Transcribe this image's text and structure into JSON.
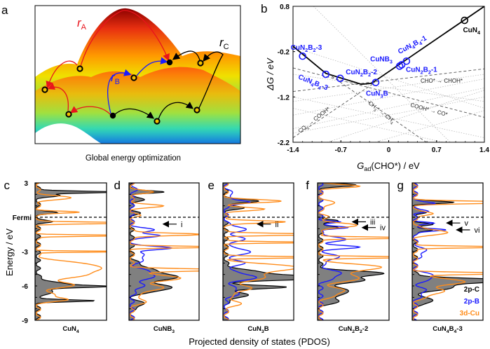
{
  "panel_labels": {
    "a": "a",
    "b": "b",
    "c": "c",
    "d": "d",
    "e": "e",
    "f": "f",
    "g": "g"
  },
  "panel_a": {
    "caption": "Global energy optimization",
    "path_labels": [
      {
        "main": "r",
        "sub": "A",
        "color": "#e8141c"
      },
      {
        "main": "r",
        "sub": "B",
        "color": "#1a1aff"
      },
      {
        "main": "r",
        "sub": "C",
        "color": "#000000"
      }
    ]
  },
  "chart_data": [
    {
      "type": "line",
      "title": "",
      "xlabel": {
        "main": "G",
        "sub": "ad",
        "rest": "(CHO*) / eV"
      },
      "ylabel": "ΔG / eV",
      "xlim": [
        -1.4,
        1.4
      ],
      "ylim": [
        -2.2,
        0.8
      ],
      "xticks": [
        "-1.4",
        "-0.7",
        "0",
        "0.7",
        "1.4"
      ],
      "xtick_values": [
        -1.4,
        -0.7,
        0,
        0.7,
        1.4
      ],
      "yticks": [
        "0.8",
        "-0.2",
        "-1.2",
        "-2.2"
      ],
      "ytick_values": [
        0.8,
        -0.2,
        -1.2,
        -2.2
      ],
      "limiting_line": [
        [
          -1.4,
          -0.08
        ],
        [
          -0.92,
          -0.68
        ],
        [
          -0.4,
          -0.92
        ],
        [
          -0.25,
          -0.9
        ],
        [
          1.4,
          0.8
        ]
      ],
      "points": [
        {
          "label": "CuN₄",
          "x": 1.11,
          "y": 0.49,
          "color": "#000000"
        },
        {
          "label": "CuN₂B₂-3",
          "x": -1.26,
          "y": -0.3,
          "color": "#1a1aff"
        },
        {
          "label": "CuN₄B₄-3",
          "x": -0.92,
          "y": -0.7,
          "color": "#1a1aff"
        },
        {
          "label": "CuN₂B₂-2",
          "x": -0.71,
          "y": -0.79,
          "color": "#1a1aff"
        },
        {
          "label": "CuN₃B",
          "x": -0.19,
          "y": -0.88,
          "color": "#1a1aff"
        },
        {
          "label": "CuNB₃",
          "x": 0.16,
          "y": -0.52,
          "color": "#1a1aff"
        },
        {
          "label": "CuN₂B₂-1",
          "x": 0.19,
          "y": -0.49,
          "color": "#1a1aff"
        },
        {
          "label": "CuN₄B₄-1",
          "x": 0.26,
          "y": -0.41,
          "color": "#1a1aff"
        }
      ],
      "reaction_lines": [
        {
          "label": "CHO* → CHOH*",
          "from": [
            -1.4,
            -1.08
          ],
          "to": [
            1.4,
            -0.58
          ]
        },
        {
          "label": "COOH* → CO*",
          "from": [
            -1.4,
            -0.56
          ],
          "to": [
            1.4,
            -1.65
          ]
        },
        {
          "label": "CO₂ → COOH*",
          "from": [
            -1.4,
            -2.1
          ],
          "to": [
            -0.2,
            -0.88
          ]
        },
        {
          "label": "CH₃* → CH₄",
          "from": [
            -0.95,
            -0.62
          ],
          "to": [
            0.55,
            -2.2
          ]
        }
      ],
      "background_lines": [
        [
          [
            -1.4,
            -1.3
          ],
          [
            1.4,
            -0.7
          ]
        ],
        [
          [
            -1.4,
            -1.6
          ],
          [
            1.4,
            -0.8
          ]
        ],
        [
          [
            -1.4,
            -1.9
          ],
          [
            1.4,
            -1.0
          ]
        ],
        [
          [
            -1.4,
            -2.0
          ],
          [
            1.4,
            -1.2
          ]
        ],
        [
          [
            -1.4,
            -1.2
          ],
          [
            1.4,
            -2.1
          ]
        ],
        [
          [
            -1.4,
            -1.45
          ],
          [
            0.8,
            -2.2
          ]
        ],
        [
          [
            -1.1,
            0.8
          ],
          [
            0.9,
            -2.2
          ]
        ],
        [
          [
            -1.4,
            -0.1
          ],
          [
            1.4,
            -1.45
          ]
        ],
        [
          [
            -0.9,
            -2.2
          ],
          [
            1.4,
            -1.05
          ]
        ],
        [
          [
            -0.2,
            -2.2
          ],
          [
            1.4,
            -1.5
          ]
        ],
        [
          [
            -1.4,
            -0.7
          ],
          [
            1.4,
            -1.3
          ]
        ]
      ]
    },
    {
      "type": "line",
      "title": "Projected density of states (PDOS)",
      "ylabel": "Energy / eV",
      "ylim": [
        -9,
        3
      ],
      "yticks": [
        "3",
        "Fermi",
        "-3",
        "-6",
        "-9"
      ],
      "ytick_values": [
        3,
        0,
        -3,
        -6,
        -9
      ],
      "legend": [
        {
          "label": "2p-C",
          "color": "#000000"
        },
        {
          "label": "2p-B",
          "color": "#1a1aff"
        },
        {
          "label": "3d-Cu",
          "color": "#ff8c1a"
        }
      ],
      "panels": [
        {
          "name": "CuN₄",
          "annotations": [],
          "series": {
            "2p-C": [
              [
                2.2,
                1.2,
                0.12
              ],
              [
                1.9,
                0.3,
                0.15
              ],
              [
                0.4,
                0.25,
                0.15
              ],
              [
                -0.4,
                0.2,
                0.15
              ],
              [
                -5.9,
                0.4,
                0.4
              ],
              [
                -6.05,
                0.7,
                0.12
              ],
              [
                -7.3,
                0.8,
                0.12
              ],
              [
                -6.6,
                0.15,
                0.4
              ]
            ],
            "2p-B": [],
            "3d-Cu": [
              [
                1.7,
                0.45,
                0.25
              ],
              [
                0.45,
                0.6,
                0.12
              ],
              [
                -0.5,
                1.5,
                0.1
              ],
              [
                -1.6,
                1.5,
                0.08
              ],
              [
                -3.0,
                1.5,
                0.06
              ],
              [
                -4.3,
                0.9,
                0.5
              ],
              [
                -5.0,
                0.65,
                0.4
              ],
              [
                -5.9,
                0.5,
                0.4
              ],
              [
                -6.9,
                0.25,
                0.4
              ],
              [
                -7.2,
                0.3,
                0.2
              ]
            ]
          }
        },
        {
          "name": "CuNB₃",
          "annotations": [
            {
              "label": "i",
              "energy": -0.6
            }
          ],
          "series": {
            "2p-C": [
              [
                2.2,
                0.5,
                0.15
              ],
              [
                1.5,
                0.2,
                0.2
              ],
              [
                0.4,
                0.1,
                0.2
              ],
              [
                -5.2,
                0.65,
                0.5
              ],
              [
                -6.2,
                0.6,
                0.4
              ],
              [
                -4.4,
                0.2,
                0.5
              ],
              [
                -7.6,
                0.2,
                0.3
              ]
            ],
            "2p-B": [
              [
                2.5,
                0.05,
                0.5
              ],
              [
                -1.1,
                0.3,
                0.25
              ],
              [
                -1.6,
                0.42,
                0.2
              ],
              [
                -2.7,
                0.6,
                0.2
              ],
              [
                -3.5,
                0.2,
                0.5
              ],
              [
                -5.0,
                0.35,
                0.5
              ],
              [
                -6.0,
                0.15,
                0.5
              ]
            ],
            "3d-Cu": [
              [
                2.2,
                0.3,
                0.2
              ],
              [
                1.0,
                0.45,
                0.2
              ],
              [
                0.15,
                0.1,
                0.2
              ],
              [
                -1.5,
                1.1,
                0.15
              ],
              [
                -2.6,
                1.4,
                0.1
              ],
              [
                -4.6,
                1.4,
                0.15
              ],
              [
                -5.3,
                0.7,
                0.4
              ],
              [
                -6.2,
                0.45,
                0.4
              ],
              [
                -7.3,
                0.2,
                0.4
              ]
            ]
          }
        },
        {
          "name": "CuN₃B",
          "annotations": [
            {
              "label": "ii",
              "energy": -0.6
            }
          ],
          "series": {
            "2p-C": [
              [
                1.4,
                0.5,
                0.2
              ],
              [
                0.8,
                0.25,
                0.2
              ],
              [
                -5.3,
                1.2,
                0.25
              ],
              [
                -5.0,
                0.6,
                0.5
              ],
              [
                -6.1,
                0.85,
                0.2
              ],
              [
                -6.8,
                0.3,
                0.4
              ]
            ],
            "2p-B": [
              [
                2.0,
                0.12,
                0.3
              ],
              [
                1.3,
                0.4,
                0.2
              ],
              [
                -1.0,
                0.3,
                0.3
              ],
              [
                -1.9,
                0.25,
                0.4
              ],
              [
                -3.0,
                0.4,
                0.3
              ],
              [
                -4.0,
                0.25,
                0.4
              ],
              [
                -5.2,
                0.45,
                0.4
              ],
              [
                -6.5,
                0.2,
                0.5
              ]
            ],
            "3d-Cu": [
              [
                1.4,
                0.8,
                0.2
              ],
              [
                0.7,
                0.55,
                0.2
              ],
              [
                -0.4,
                0.9,
                0.15
              ],
              [
                -1.5,
                1.5,
                0.12
              ],
              [
                -2.2,
                1.5,
                0.08
              ],
              [
                -3.5,
                1.5,
                0.1
              ],
              [
                -4.4,
                1.1,
                0.4
              ],
              [
                -5.2,
                0.6,
                0.4
              ],
              [
                -6.2,
                0.35,
                0.5
              ],
              [
                -7.5,
                0.2,
                0.4
              ]
            ]
          }
        },
        {
          "name": "CuN₂B₂-2",
          "annotations": [
            {
              "label": "iii",
              "energy": -0.4
            },
            {
              "label": "iv",
              "energy": -0.9
            }
          ],
          "series": {
            "2p-C": [
              [
                2.8,
                0.5,
                0.2
              ],
              [
                -0.3,
                0.3,
                0.15
              ],
              [
                -0.9,
                0.3,
                0.15
              ],
              [
                -4.9,
                0.85,
                0.3
              ],
              [
                -5.5,
                0.6,
                0.4
              ],
              [
                -6.5,
                0.45,
                0.4
              ],
              [
                -7.3,
                0.3,
                0.3
              ]
            ],
            "2p-B": [
              [
                -0.4,
                0.3,
                0.12
              ],
              [
                -0.9,
                0.45,
                0.15
              ],
              [
                -1.9,
                0.35,
                0.3
              ],
              [
                -2.6,
                0.55,
                0.2
              ],
              [
                -3.5,
                0.25,
                0.4
              ],
              [
                -5.0,
                0.3,
                0.5
              ]
            ],
            "3d-Cu": [
              [
                2.7,
                0.55,
                0.2
              ],
              [
                1.2,
                0.2,
                0.3
              ],
              [
                0.1,
                0.1,
                0.2
              ],
              [
                -0.7,
                0.5,
                0.3
              ],
              [
                -1.8,
                1.5,
                0.1
              ],
              [
                -3.5,
                1.5,
                0.1
              ],
              [
                -4.4,
                0.9,
                0.4
              ],
              [
                -5.3,
                0.6,
                0.4
              ],
              [
                -6.5,
                0.35,
                0.5
              ]
            ]
          }
        },
        {
          "name": "CuN₄B₄-3",
          "annotations": [
            {
              "label": "v",
              "energy": -0.5
            },
            {
              "label": "vi",
              "energy": -1.1
            }
          ],
          "series": {
            "2p-C": [
              [
                1.3,
                0.55,
                0.15
              ],
              [
                0.4,
                0.2,
                0.15
              ],
              [
                -0.6,
                0.25,
                0.15
              ],
              [
                -1.1,
                0.3,
                0.15
              ],
              [
                -5.5,
                1.2,
                0.25
              ],
              [
                -6.0,
                0.6,
                0.5
              ],
              [
                -7.3,
                0.3,
                0.3
              ]
            ],
            "2p-B": [
              [
                1.2,
                0.3,
                0.15
              ],
              [
                0.5,
                0.2,
                0.15
              ],
              [
                -0.5,
                0.3,
                0.12
              ],
              [
                -1.1,
                0.5,
                0.15
              ],
              [
                -3.0,
                0.15,
                0.5
              ],
              [
                -5.2,
                0.3,
                0.4
              ],
              [
                -6.5,
                0.15,
                0.5
              ]
            ],
            "3d-Cu": [
              [
                1.3,
                1.5,
                0.15
              ],
              [
                0.3,
                0.3,
                0.2
              ],
              [
                -1.3,
                0.5,
                0.3
              ],
              [
                -2.6,
                1.5,
                0.1
              ],
              [
                -4.9,
                1.5,
                0.12
              ],
              [
                -5.6,
                0.7,
                0.4
              ],
              [
                -6.5,
                0.4,
                0.5
              ]
            ]
          }
        }
      ]
    }
  ]
}
